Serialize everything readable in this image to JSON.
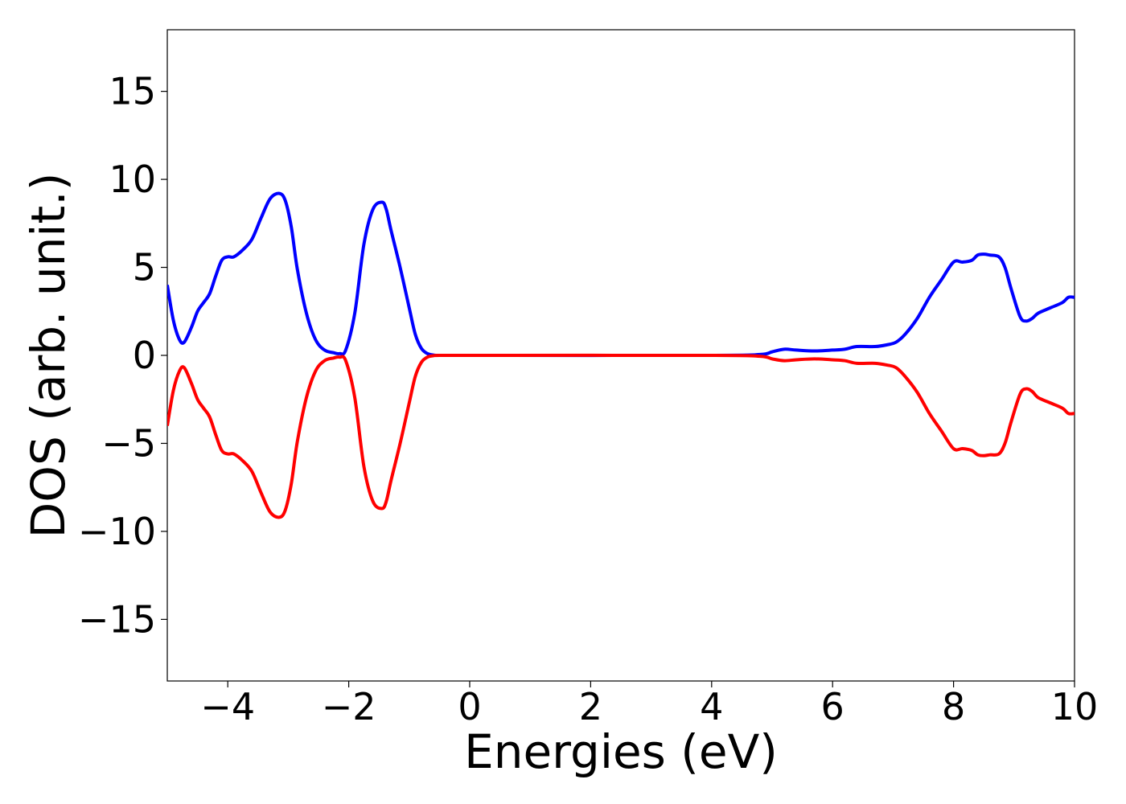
{
  "chart_data": {
    "type": "line",
    "title": "",
    "xlabel": "Energies (eV)",
    "ylabel": "DOS (arb. unit.)",
    "xlim": [
      -5,
      10
    ],
    "ylim": [
      -18.5,
      18.5
    ],
    "xticks": [
      -4,
      -2,
      0,
      2,
      4,
      6,
      8,
      10
    ],
    "xtick_labels": [
      "−4",
      "−2",
      "0",
      "2",
      "4",
      "6",
      "8",
      "10"
    ],
    "yticks": [
      15,
      10,
      5,
      0,
      -5,
      -10,
      -15
    ],
    "ytick_labels": [
      "15",
      "10",
      "5",
      "0",
      "−5",
      "−10",
      "−15"
    ],
    "grid": false,
    "legend": "none",
    "colors": [
      "#0000ff",
      "#ff0000"
    ],
    "x": [
      -5.0,
      -4.9,
      -4.8,
      -4.72,
      -4.6,
      -4.5,
      -4.4,
      -4.3,
      -4.2,
      -4.1,
      -4.0,
      -3.9,
      -3.75,
      -3.6,
      -3.45,
      -3.3,
      -3.15,
      -3.05,
      -2.95,
      -2.85,
      -2.7,
      -2.55,
      -2.4,
      -2.25,
      -2.15,
      -2.05,
      -1.9,
      -1.75,
      -1.6,
      -1.45,
      -1.38,
      -1.3,
      -1.15,
      -1.0,
      -0.9,
      -0.8,
      -0.7,
      -0.6,
      -0.5,
      0.0,
      4.0,
      4.8,
      5.0,
      5.2,
      5.4,
      5.7,
      6.0,
      6.2,
      6.4,
      6.7,
      6.9,
      7.05,
      7.2,
      7.4,
      7.6,
      7.8,
      8.0,
      8.15,
      8.3,
      8.4,
      8.5,
      8.6,
      8.75,
      8.85,
      8.95,
      9.1,
      9.2,
      9.3,
      9.4,
      9.6,
      9.8,
      9.9,
      10.0
    ],
    "series": [
      {
        "values": [
          4.0,
          2.0,
          0.9,
          0.75,
          1.6,
          2.5,
          3.0,
          3.5,
          4.5,
          5.4,
          5.6,
          5.6,
          6.0,
          6.6,
          7.8,
          8.9,
          9.2,
          8.8,
          7.3,
          4.9,
          2.4,
          0.9,
          0.3,
          0.15,
          0.1,
          0.3,
          2.4,
          6.3,
          8.3,
          8.7,
          8.3,
          7.1,
          5.0,
          2.7,
          1.2,
          0.4,
          0.1,
          0.02,
          0.0,
          0.0,
          0.0,
          0.05,
          0.2,
          0.35,
          0.3,
          0.25,
          0.3,
          0.35,
          0.5,
          0.5,
          0.6,
          0.75,
          1.2,
          2.1,
          3.3,
          4.3,
          5.3,
          5.3,
          5.4,
          5.7,
          5.75,
          5.7,
          5.6,
          5.0,
          3.8,
          2.2,
          1.95,
          2.1,
          2.4,
          2.7,
          3.0,
          3.3,
          3.3
        ]
      },
      {
        "values": [
          -4.0,
          -2.0,
          -0.9,
          -0.7,
          -1.6,
          -2.5,
          -3.0,
          -3.5,
          -4.5,
          -5.4,
          -5.6,
          -5.6,
          -6.0,
          -6.6,
          -7.8,
          -8.9,
          -9.2,
          -8.8,
          -7.3,
          -4.9,
          -2.4,
          -0.9,
          -0.3,
          -0.15,
          -0.1,
          -0.3,
          -2.4,
          -6.3,
          -8.3,
          -8.7,
          -8.3,
          -7.1,
          -5.0,
          -2.7,
          -1.2,
          -0.4,
          -0.1,
          -0.02,
          0.0,
          0.0,
          0.0,
          -0.05,
          -0.2,
          -0.3,
          -0.25,
          -0.2,
          -0.25,
          -0.3,
          -0.45,
          -0.45,
          -0.55,
          -0.7,
          -1.2,
          -2.1,
          -3.3,
          -4.3,
          -5.3,
          -5.3,
          -5.4,
          -5.65,
          -5.7,
          -5.65,
          -5.6,
          -5.0,
          -3.8,
          -2.2,
          -1.9,
          -2.05,
          -2.4,
          -2.7,
          -3.0,
          -3.3,
          -3.3
        ]
      }
    ]
  }
}
